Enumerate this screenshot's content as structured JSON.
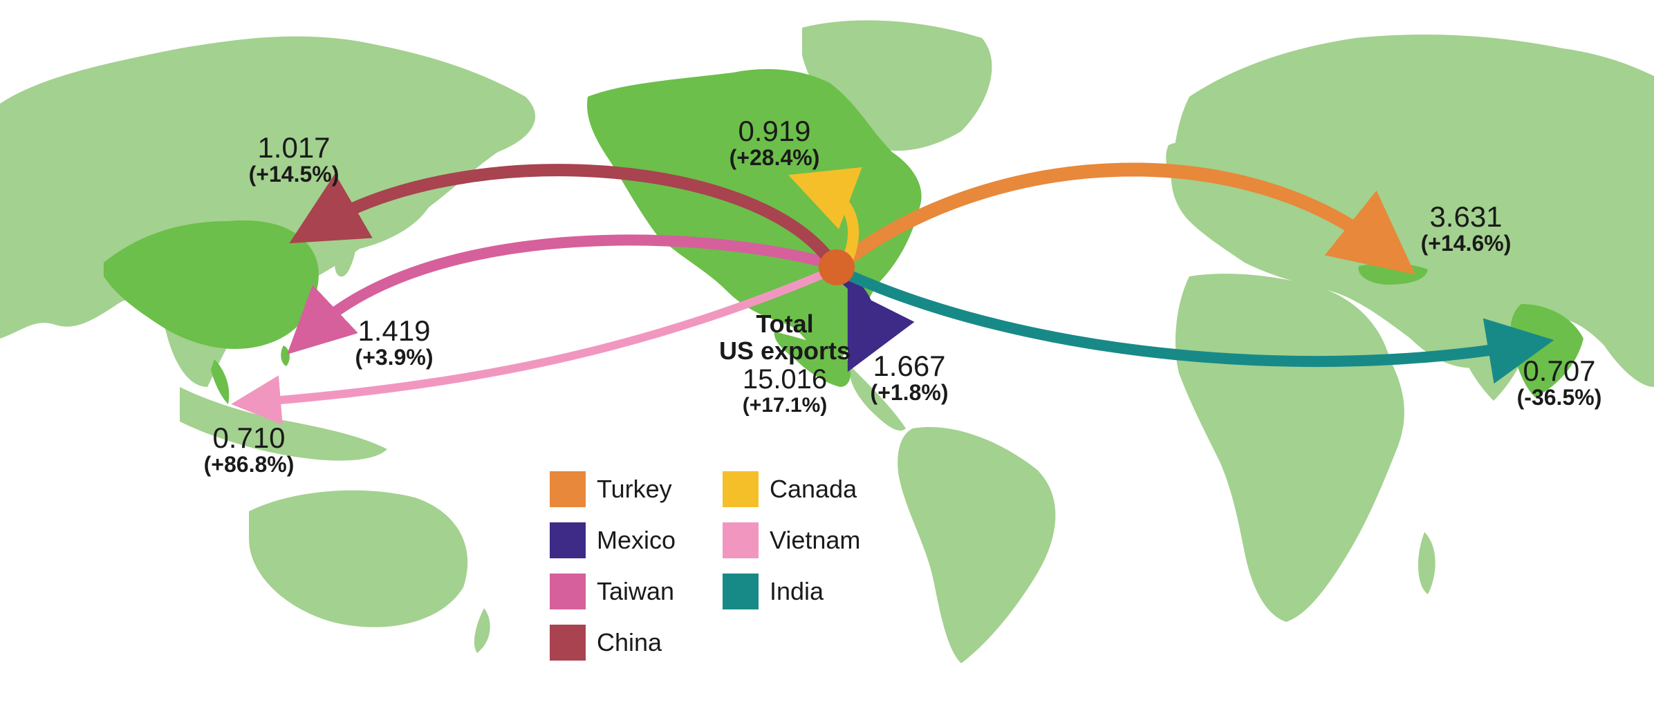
{
  "colors": {
    "ocean": "#ffffff",
    "land": "#a3d18f",
    "land_highlight": "#6cbf4a",
    "origin": "#d8652a"
  },
  "origin": {
    "name": "US",
    "icon": "origin-dot"
  },
  "total": {
    "line1": "Total",
    "line2": "US exports",
    "value": "15.016",
    "change": "(+17.1%)"
  },
  "flows": [
    {
      "country": "Turkey",
      "value": "3.631",
      "change": "(+14.6%)",
      "color": "#e8883a"
    },
    {
      "country": "Mexico",
      "value": "1.667",
      "change": "(+1.8%)",
      "color": "#3e2a87"
    },
    {
      "country": "Taiwan",
      "value": "1.419",
      "change": "(+3.9%)",
      "color": "#d6609b"
    },
    {
      "country": "China",
      "value": "1.017",
      "change": "(+14.5%)",
      "color": "#a8434f"
    },
    {
      "country": "Canada",
      "value": "0.919",
      "change": "(+28.4%)",
      "color": "#f5bf2a"
    },
    {
      "country": "Vietnam",
      "value": "0.710",
      "change": "(+86.8%)",
      "color": "#f197bf"
    },
    {
      "country": "India",
      "value": "0.707",
      "change": "(-36.5%)",
      "color": "#178a88"
    }
  ],
  "legend": [
    {
      "label": "Turkey",
      "color": "#e8883a"
    },
    {
      "label": "Canada",
      "color": "#f5bf2a"
    },
    {
      "label": "Mexico",
      "color": "#3e2a87"
    },
    {
      "label": "Vietnam",
      "color": "#f197bf"
    },
    {
      "label": "Taiwan",
      "color": "#d6609b"
    },
    {
      "label": "India",
      "color": "#178a88"
    },
    {
      "label": "China",
      "color": "#a8434f"
    }
  ]
}
